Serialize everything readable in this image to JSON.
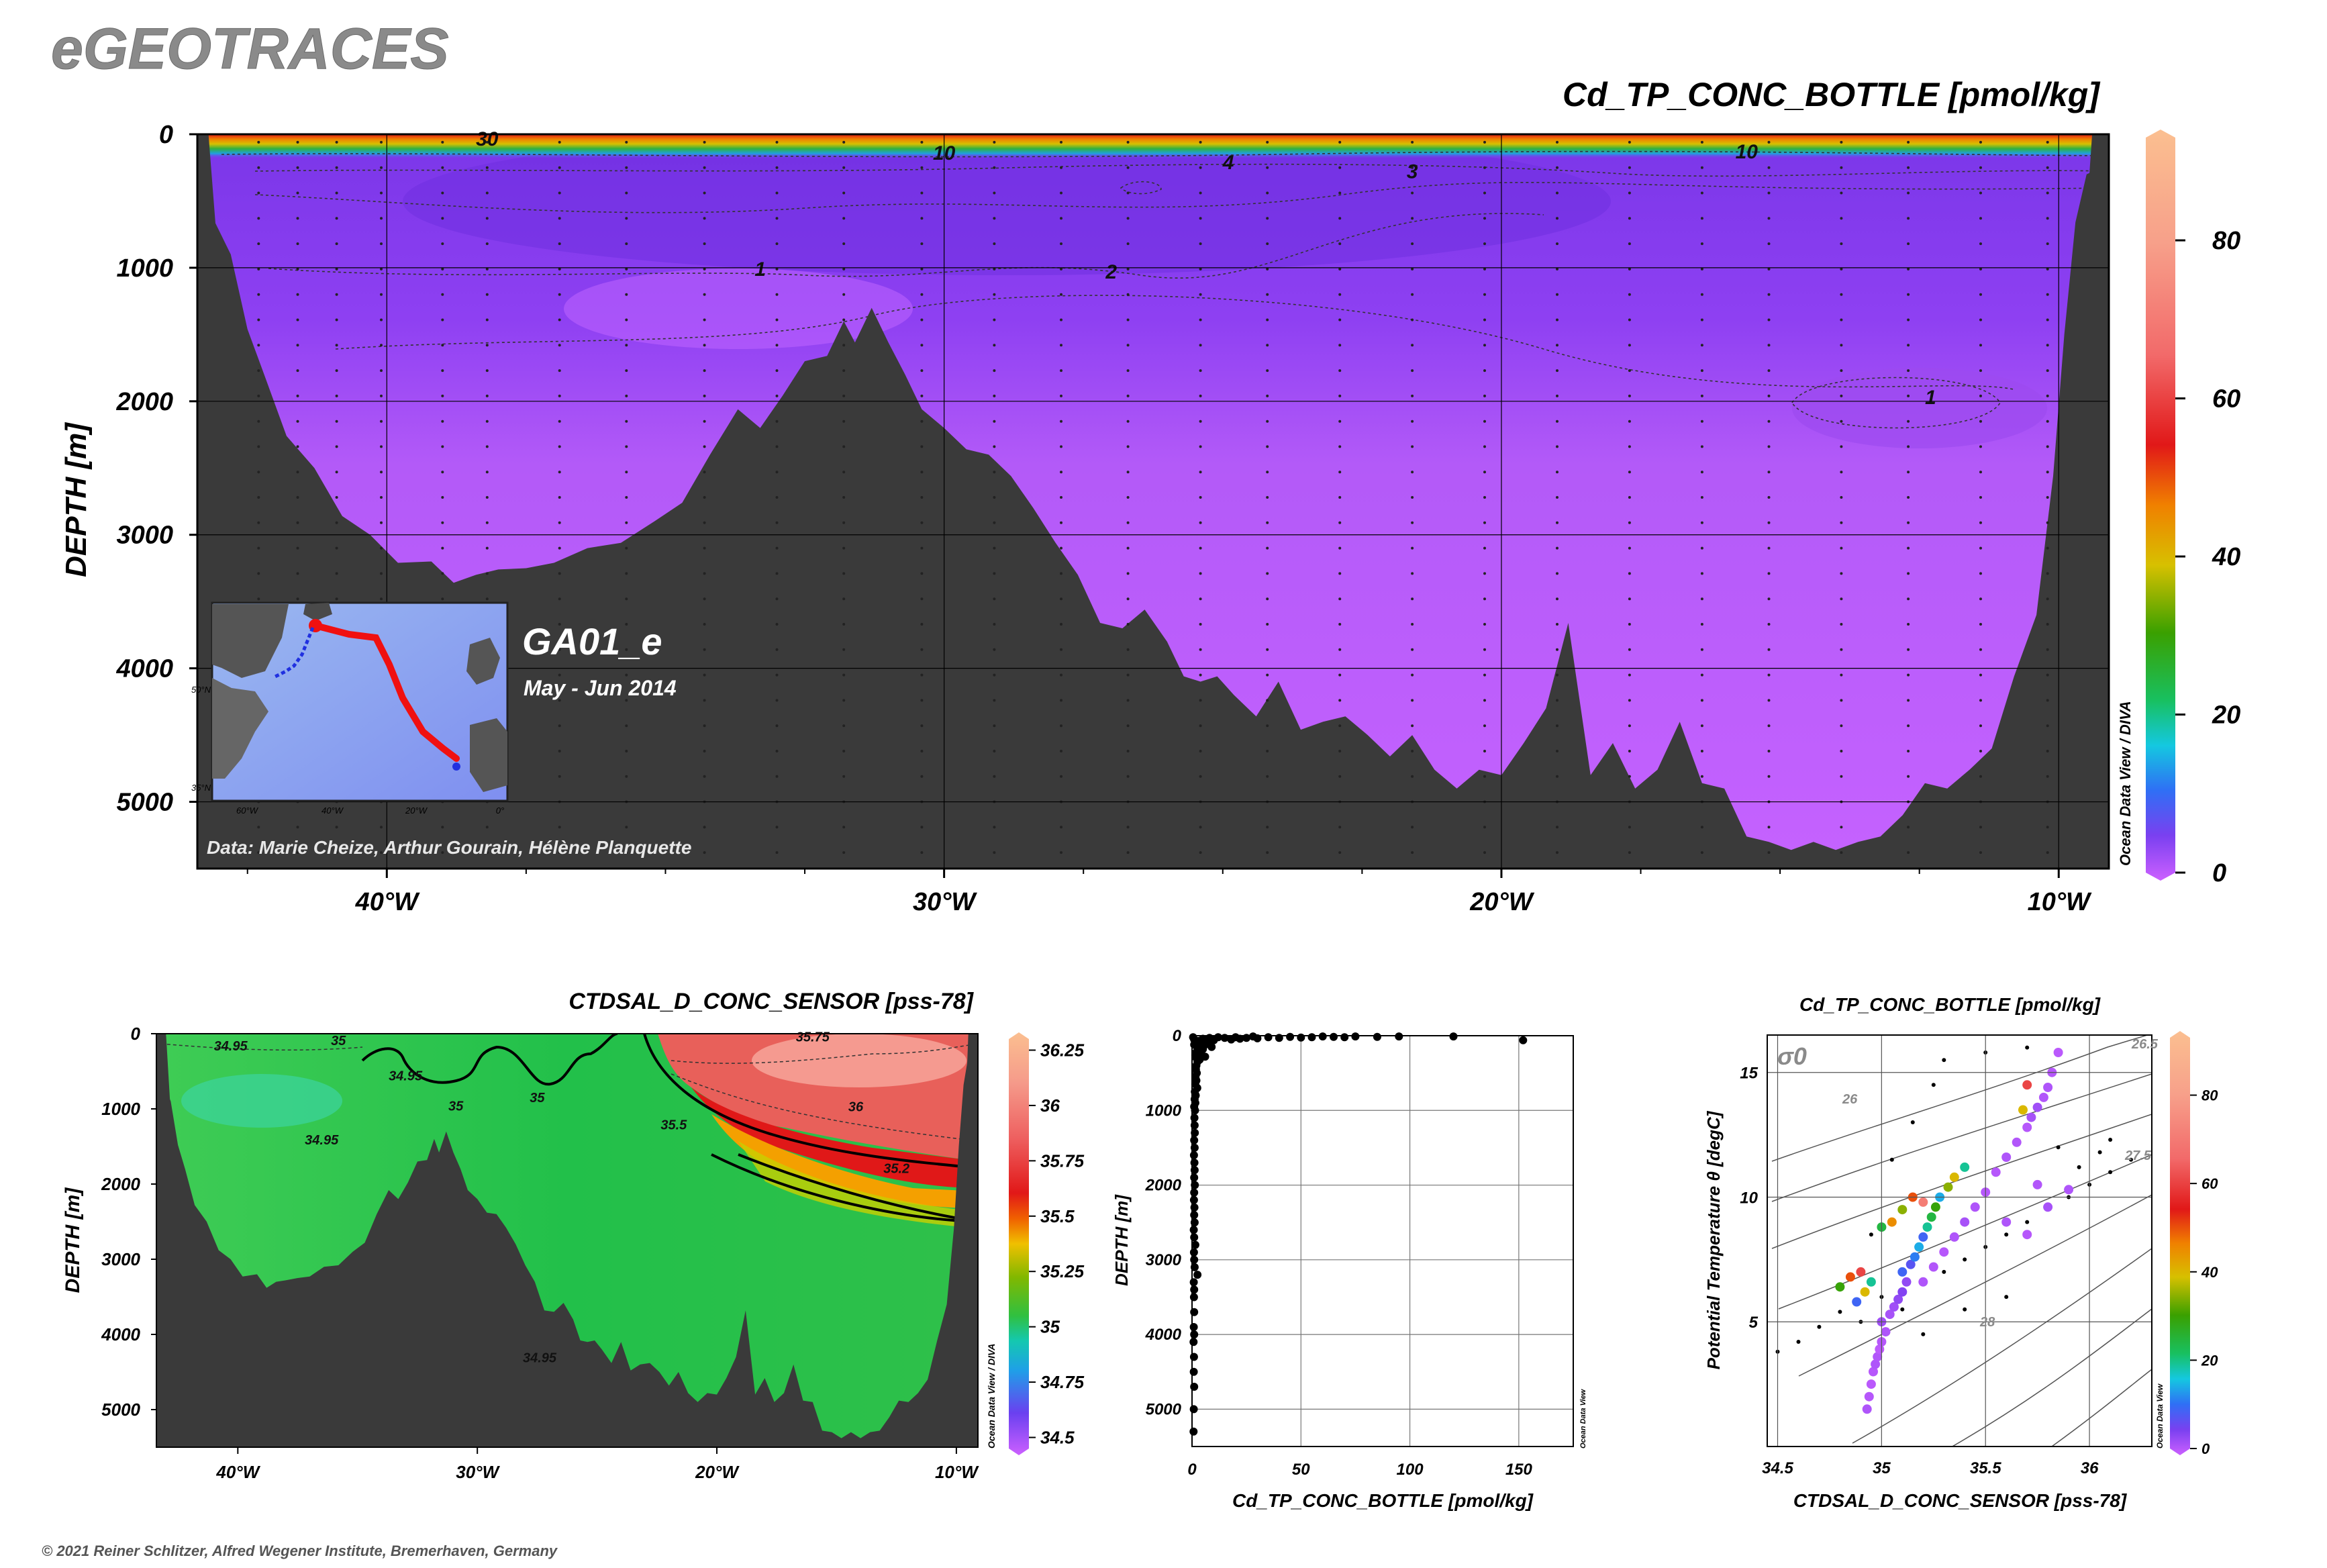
{
  "header": {
    "logo": "eGEOTRACES",
    "copyright": "© 2021 Reiner Schlitzer, Alfred Wegener Institute, Bremerhaven, Germany"
  },
  "main_section": {
    "title": "Cd_TP_CONC_BOTTLE [pmol/kg]",
    "ylabel": "DEPTH [m]",
    "cruise": "GA01_e",
    "dates": "May - Jun 2014",
    "credit": "Data: Marie Cheize, Arthur Gourain, Hélène Planquette",
    "watermark": "Ocean Data View / DIVA",
    "contour_labels": [
      "30",
      "10",
      "4",
      "3",
      "10",
      "1",
      "2",
      "1"
    ]
  },
  "inset_map": {
    "lat_labels": [
      "50°N",
      "35°N"
    ],
    "lon_labels": [
      "60°W",
      "40°W",
      "20°W",
      "0°"
    ]
  },
  "salinity_section": {
    "title": "CTDSAL_D_CONC_SENSOR [pss-78]",
    "ylabel": "DEPTH [m]",
    "watermark": "Ocean Data View / DIVA",
    "contour_labels": [
      "34.95",
      "34.95",
      "35",
      "34.95",
      "35",
      "35",
      "35.5",
      "35.2",
      "36",
      "34.95",
      "35.75"
    ]
  },
  "profile_plot": {
    "xlabel": "Cd_TP_CONC_BOTTLE [pmol/kg]",
    "ylabel": "DEPTH [m]",
    "watermark": "Ocean Data View"
  },
  "ts_plot": {
    "title": "Cd_TP_CONC_BOTTLE [pmol/kg]",
    "xlabel": "CTDSAL_D_CONC_SENSOR [pss-78]",
    "ylabel": "Potential Temperature θ [degC]",
    "sigma_label": "σ0",
    "isopycnal_labels": [
      "26.5",
      "26",
      "27.5",
      "28"
    ],
    "watermark": "Ocean Data View"
  },
  "colors": {
    "bathymetry": "#3a3a3a",
    "deep_water": "#c060ff",
    "mid_water": "#9a45f0",
    "surface_high": "#ff3010"
  },
  "chart_data": [
    {
      "type": "heatmap",
      "title": "Cd_TP_CONC_BOTTLE [pmol/kg]",
      "ylabel": "DEPTH [m]",
      "x_ticks": [
        "40°W",
        "30°W",
        "20°W",
        "10°W"
      ],
      "x_tick_values": [
        -40,
        -30,
        -20,
        -10
      ],
      "xlim": [
        -43.4,
        -9.1
      ],
      "y_ticks": [
        "0",
        "1000",
        "2000",
        "3000",
        "4000",
        "5000"
      ],
      "y_tick_values": [
        0,
        1000,
        2000,
        3000,
        4000,
        5000
      ],
      "ylim": [
        5500,
        0
      ],
      "colorbar_ticks": [
        "0",
        "20",
        "40",
        "60",
        "80"
      ],
      "colorbar_values": [
        0,
        20,
        40,
        60,
        80
      ],
      "colorbar_range": [
        0,
        93
      ],
      "bottom_depth_profile": {
        "lon": [
          -43.4,
          -43.2,
          -42.8,
          -42.5,
          -42.2,
          -41.8,
          -41.3,
          -40.8,
          -40.3,
          -39.8,
          -39.2,
          -38.8,
          -38.4,
          -38.0,
          -37.5,
          -37.0,
          -36.4,
          -35.8,
          -35.2,
          -34.7,
          -34.2,
          -33.7,
          -33.3,
          -32.9,
          -32.5,
          -32.1,
          -31.8,
          -31.6,
          -31.3,
          -31.0,
          -30.7,
          -30.4,
          -30.0,
          -29.6,
          -29.2,
          -28.8,
          -28.4,
          -28.0,
          -27.6,
          -27.2,
          -26.8,
          -26.4,
          -26.0,
          -25.7,
          -25.4,
          -25.1,
          -24.8,
          -24.4,
          -24.0,
          -23.6,
          -23.2,
          -22.8,
          -22.4,
          -22.0,
          -21.6,
          -21.2,
          -20.8,
          -20.4,
          -20.0,
          -19.6,
          -19.2,
          -18.8,
          -18.4,
          -18.0,
          -17.6,
          -17.2,
          -16.8,
          -16.4,
          -16.0,
          -15.6,
          -15.2,
          -14.8,
          -14.4,
          -14.0,
          -13.6,
          -13.2,
          -12.8,
          -12.4,
          -12.0,
          -11.6,
          -11.2,
          -10.8,
          -10.4,
          -10.1,
          -9.9,
          -9.7,
          -9.5,
          -9.3,
          -9.1
        ],
        "depth": [
          200,
          500,
          900,
          1400,
          1800,
          2200,
          2500,
          2800,
          3000,
          3150,
          3200,
          3300,
          3300,
          3200,
          3250,
          3150,
          3100,
          3000,
          2900,
          2700,
          2400,
          2000,
          2200,
          1900,
          1700,
          1600,
          1400,
          1500,
          1300,
          1500,
          1800,
          2000,
          2200,
          2300,
          2400,
          2500,
          2800,
          3000,
          3300,
          3600,
          3700,
          3500,
          3800,
          4000,
          4100,
          4000,
          4200,
          4300,
          4100,
          4400,
          4400,
          4300,
          4500,
          4600,
          4500,
          4700,
          4900,
          4700,
          4800,
          4500,
          4300,
          3600,
          4800,
          4500,
          4900,
          4700,
          4400,
          4800,
          4900,
          5200,
          5300,
          5300,
          5300,
          5300,
          5300,
          5200,
          5100,
          4800,
          4900,
          4700,
          4600,
          4000,
          3600,
          2500,
          1500,
          600,
          300,
          200,
          100
        ]
      },
      "contours": [
        {
          "level": 30,
          "label": "30"
        },
        {
          "level": 10,
          "label": "10"
        },
        {
          "level": 4,
          "label": "4"
        },
        {
          "level": 3,
          "label": "3"
        },
        {
          "level": 2,
          "label": "2"
        },
        {
          "level": 1,
          "label": "1"
        }
      ]
    },
    {
      "type": "heatmap",
      "title": "CTDSAL_D_CONC_SENSOR [pss-78]",
      "ylabel": "DEPTH [m]",
      "x_ticks": [
        "40°W",
        "30°W",
        "20°W",
        "10°W"
      ],
      "x_tick_values": [
        -40,
        -30,
        -20,
        -10
      ],
      "y_ticks": [
        "0",
        "1000",
        "2000",
        "3000",
        "4000",
        "5000"
      ],
      "y_tick_values": [
        0,
        1000,
        2000,
        3000,
        4000,
        5000
      ],
      "ylim": [
        5500,
        0
      ],
      "colorbar_ticks": [
        "34.5",
        "34.75",
        "35",
        "35.25",
        "35.5",
        "35.75",
        "36",
        "36.25"
      ],
      "colorbar_values": [
        34.5,
        34.75,
        35,
        35.25,
        35.5,
        35.75,
        36,
        36.25
      ],
      "colorbar_range": [
        34.45,
        36.3
      ]
    },
    {
      "type": "scatter",
      "xlabel": "Cd_TP_CONC_BOTTLE [pmol/kg]",
      "ylabel": "DEPTH [m]",
      "xlim": [
        0,
        175
      ],
      "ylim": [
        5500,
        0
      ],
      "x_ticks": [
        "0",
        "50",
        "100",
        "150"
      ],
      "x_tick_values": [
        0,
        50,
        100,
        150
      ],
      "y_ticks": [
        "0",
        "1000",
        "2000",
        "3000",
        "4000",
        "5000"
      ],
      "y_tick_values": [
        0,
        1000,
        2000,
        3000,
        4000,
        5000
      ],
      "grid": true,
      "points": [
        [
          0.5,
          20
        ],
        [
          1,
          50
        ],
        [
          1.5,
          80
        ],
        [
          2,
          100
        ],
        [
          1,
          120
        ],
        [
          3,
          150
        ],
        [
          2.5,
          180
        ],
        [
          2,
          220
        ],
        [
          1.5,
          260
        ],
        [
          2,
          300
        ],
        [
          2.5,
          350
        ],
        [
          2,
          400
        ],
        [
          1.8,
          450
        ],
        [
          2.2,
          500
        ],
        [
          1.6,
          550
        ],
        [
          2,
          600
        ],
        [
          1.5,
          650
        ],
        [
          2.4,
          700
        ],
        [
          1.3,
          750
        ],
        [
          1.7,
          800
        ],
        [
          1.2,
          850
        ],
        [
          1.5,
          900
        ],
        [
          1,
          950
        ],
        [
          1.4,
          1000
        ],
        [
          1.1,
          1100
        ],
        [
          1.2,
          1200
        ],
        [
          1.3,
          1300
        ],
        [
          1,
          1400
        ],
        [
          1.2,
          1500
        ],
        [
          0.9,
          1600
        ],
        [
          1.1,
          1700
        ],
        [
          1.2,
          1800
        ],
        [
          1,
          1900
        ],
        [
          1.3,
          2000
        ],
        [
          1,
          2100
        ],
        [
          0.9,
          2200
        ],
        [
          1.1,
          2300
        ],
        [
          1,
          2400
        ],
        [
          1.2,
          2500
        ],
        [
          0.8,
          2600
        ],
        [
          1,
          2700
        ],
        [
          1.5,
          2800
        ],
        [
          0.9,
          2900
        ],
        [
          1,
          3000
        ],
        [
          1.2,
          3100
        ],
        [
          2.5,
          3200
        ],
        [
          0.8,
          3300
        ],
        [
          1,
          3400
        ],
        [
          0.9,
          3500
        ],
        [
          1,
          3700
        ],
        [
          0.8,
          3900
        ],
        [
          1,
          4000
        ],
        [
          0.7,
          4100
        ],
        [
          0.9,
          4300
        ],
        [
          0.8,
          4500
        ],
        [
          1,
          4700
        ],
        [
          0.8,
          5000
        ],
        [
          0.7,
          5300
        ],
        [
          5,
          40
        ],
        [
          8,
          30
        ],
        [
          10,
          60
        ],
        [
          12,
          20
        ],
        [
          15,
          30
        ],
        [
          18,
          50
        ],
        [
          20,
          20
        ],
        [
          22,
          40
        ],
        [
          25,
          30
        ],
        [
          28,
          10
        ],
        [
          30,
          35
        ],
        [
          35,
          20
        ],
        [
          40,
          30
        ],
        [
          45,
          15
        ],
        [
          50,
          25
        ],
        [
          55,
          20
        ],
        [
          60,
          10
        ],
        [
          65,
          15
        ],
        [
          70,
          20
        ],
        [
          75,
          10
        ],
        [
          85,
          15
        ],
        [
          95,
          10
        ],
        [
          120,
          10
        ],
        [
          152,
          60
        ],
        [
          4,
          100
        ],
        [
          6,
          120
        ],
        [
          7,
          90
        ],
        [
          9,
          150
        ],
        [
          5,
          180
        ],
        [
          3,
          200
        ],
        [
          4,
          250
        ],
        [
          6,
          280
        ],
        [
          3.5,
          320
        ],
        [
          5,
          60
        ],
        [
          7,
          50
        ],
        [
          3,
          70
        ]
      ]
    },
    {
      "type": "scatter",
      "title": "Cd_TP_CONC_BOTTLE [pmol/kg]",
      "xlabel": "CTDSAL_D_CONC_SENSOR [pss-78]",
      "ylabel": "Potential Temperature θ [degC]",
      "xlim": [
        34.45,
        36.3
      ],
      "ylim": [
        0,
        16.5
      ],
      "x_ticks": [
        "34.5",
        "35",
        "35.5",
        "36"
      ],
      "x_tick_values": [
        34.5,
        35,
        35.5,
        36
      ],
      "y_ticks": [
        "5",
        "10",
        "15"
      ],
      "y_tick_values": [
        5,
        10,
        15
      ],
      "grid": true,
      "colorbar_ticks": [
        "0",
        "20",
        "40",
        "60",
        "80"
      ],
      "colorbar_values": [
        0,
        20,
        40,
        60,
        80
      ],
      "colorbar_range": [
        0,
        93
      ],
      "colored_points": [
        [
          34.93,
          1.5,
          2
        ],
        [
          34.94,
          2.0,
          1.5
        ],
        [
          34.95,
          2.5,
          1.2
        ],
        [
          34.96,
          3.0,
          1.5
        ],
        [
          34.97,
          3.3,
          2
        ],
        [
          34.98,
          3.6,
          1.8
        ],
        [
          34.99,
          3.9,
          1
        ],
        [
          35.0,
          4.2,
          1.5
        ],
        [
          35.02,
          4.6,
          2
        ],
        [
          35.0,
          5.0,
          3
        ],
        [
          35.04,
          5.3,
          2.5
        ],
        [
          35.06,
          5.6,
          3
        ],
        [
          35.08,
          5.9,
          4
        ],
        [
          35.1,
          6.2,
          5
        ],
        [
          35.12,
          6.6,
          4
        ],
        [
          35.1,
          7.0,
          10
        ],
        [
          35.14,
          7.3,
          8
        ],
        [
          35.16,
          7.6,
          12
        ],
        [
          35.18,
          8.0,
          15
        ],
        [
          35.2,
          8.4,
          10
        ],
        [
          35.22,
          8.8,
          20
        ],
        [
          35.24,
          9.2,
          25
        ],
        [
          35.26,
          9.6,
          30
        ],
        [
          35.28,
          10.0,
          15
        ],
        [
          35.32,
          10.4,
          35
        ],
        [
          35.35,
          10.8,
          40
        ],
        [
          35.4,
          11.2,
          20
        ],
        [
          34.8,
          6.4,
          30
        ],
        [
          34.85,
          6.8,
          50
        ],
        [
          34.9,
          7.0,
          60
        ],
        [
          34.95,
          6.6,
          20
        ],
        [
          34.88,
          5.8,
          10
        ],
        [
          34.92,
          6.2,
          40
        ],
        [
          35.05,
          9.0,
          45
        ],
        [
          35.1,
          9.5,
          35
        ],
        [
          35.15,
          10.0,
          50
        ],
        [
          35.2,
          9.8,
          70
        ],
        [
          35.0,
          8.8,
          25
        ],
        [
          35.55,
          11.0,
          1.5
        ],
        [
          35.6,
          11.6,
          2
        ],
        [
          35.65,
          12.2,
          1.8
        ],
        [
          35.7,
          12.8,
          1.5
        ],
        [
          35.72,
          13.2,
          2.5
        ],
        [
          35.75,
          13.6,
          3
        ],
        [
          35.78,
          14.0,
          1.8
        ],
        [
          35.8,
          14.4,
          2
        ],
        [
          35.82,
          15.0,
          1.5
        ],
        [
          35.85,
          15.8,
          1.2
        ],
        [
          35.68,
          13.5,
          40
        ],
        [
          35.7,
          14.5,
          60
        ],
        [
          35.5,
          10.2,
          1.5
        ],
        [
          35.45,
          9.6,
          2
        ],
        [
          35.4,
          9.0,
          2.5
        ],
        [
          35.35,
          8.4,
          2
        ],
        [
          35.3,
          7.8,
          1.5
        ],
        [
          35.25,
          7.2,
          1.8
        ],
        [
          35.2,
          6.6,
          2
        ],
        [
          35.6,
          9.0,
          2
        ],
        [
          35.7,
          8.5,
          1.5
        ],
        [
          35.8,
          9.6,
          2.5
        ],
        [
          35.9,
          10.3,
          2
        ],
        [
          35.75,
          10.5,
          1.8
        ]
      ],
      "black_points": [
        [
          34.5,
          3.8
        ],
        [
          34.6,
          4.2
        ],
        [
          34.7,
          4.8
        ],
        [
          34.8,
          5.4
        ],
        [
          34.9,
          5.0
        ],
        [
          35.0,
          6.0
        ],
        [
          35.1,
          5.5
        ],
        [
          35.2,
          6.5
        ],
        [
          35.3,
          7.0
        ],
        [
          35.4,
          7.5
        ],
        [
          35.5,
          8.0
        ],
        [
          35.6,
          8.5
        ],
        [
          35.7,
          9.0
        ],
        [
          35.8,
          9.5
        ],
        [
          35.9,
          10.0
        ],
        [
          36.0,
          10.5
        ],
        [
          36.1,
          11.0
        ],
        [
          36.2,
          11.5
        ],
        [
          35.3,
          15.5
        ],
        [
          35.5,
          15.8
        ],
        [
          35.7,
          16.0
        ],
        [
          36.1,
          12.3
        ],
        [
          35.95,
          11.2
        ],
        [
          35.2,
          4.5
        ],
        [
          35.4,
          5.5
        ],
        [
          35.6,
          6.0
        ],
        [
          34.95,
          8.5
        ],
        [
          35.05,
          11.5
        ],
        [
          35.15,
          13.0
        ],
        [
          35.25,
          14.5
        ],
        [
          36.05,
          11.8
        ],
        [
          35.85,
          12.0
        ]
      ]
    }
  ]
}
